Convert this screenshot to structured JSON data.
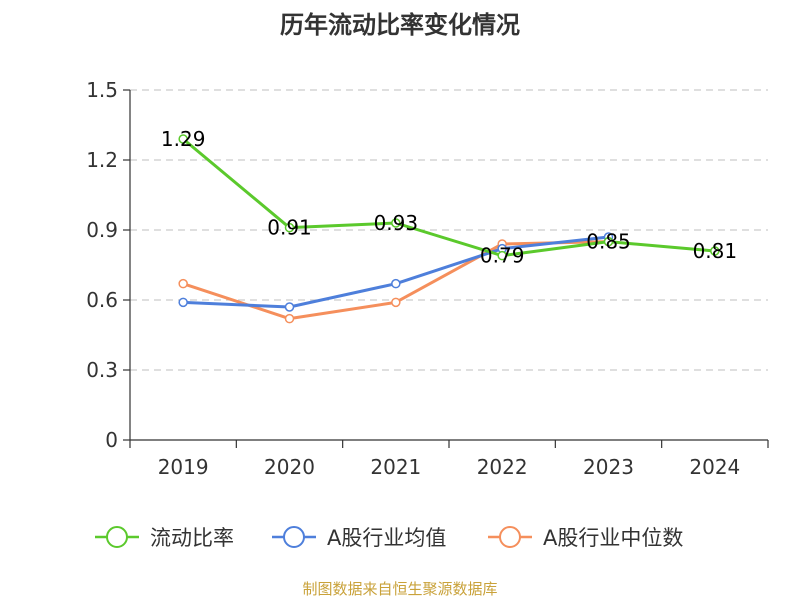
{
  "chart_data": {
    "type": "line",
    "title": "历年流动比率变化情况",
    "categories": [
      "2019",
      "2020",
      "2021",
      "2022",
      "2023",
      "2024"
    ],
    "ylim": [
      0,
      1.5
    ],
    "yticks": [
      "0",
      "0.3",
      "0.6",
      "0.9",
      "1.2",
      "1.5"
    ],
    "grid": true,
    "legend_position": "bottom",
    "series": [
      {
        "name": "流动比率",
        "color": "#5bc92c",
        "values": [
          1.29,
          0.91,
          0.93,
          0.79,
          0.85,
          0.81
        ],
        "labels": [
          "1.29",
          "0.91",
          "0.93",
          "0.79",
          "0.85",
          "0.81"
        ]
      },
      {
        "name": "A股行业均值",
        "color": "#4e7fdb",
        "values": [
          0.59,
          0.57,
          0.67,
          0.82,
          0.87,
          null
        ]
      },
      {
        "name": "A股行业中位数",
        "color": "#f58f5c",
        "values": [
          0.67,
          0.52,
          0.59,
          0.84,
          0.85,
          null
        ]
      }
    ]
  },
  "footer": {
    "source": "制图数据来自恒生聚源数据库"
  }
}
